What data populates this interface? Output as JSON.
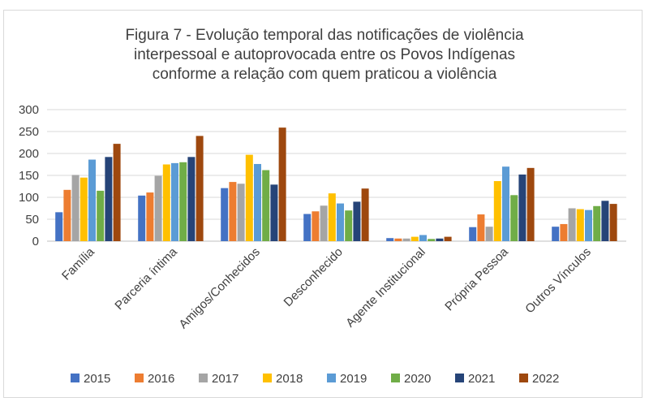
{
  "chart_data": {
    "type": "bar",
    "title": "Figura 7 - Evolução temporal das notificações de violência interpessoal e autoprovocada entre os Povos Indígenas conforme a relação com quem praticou a violência",
    "title_lines": [
      "Figura 7 - Evolução temporal das notificações de violência",
      "interpessoal e autoprovocada entre os Povos Indígenas",
      "conforme a relação com quem praticou a violência"
    ],
    "xlabel": "",
    "ylabel": "",
    "ylim": [
      0,
      300
    ],
    "yticks": [
      "0",
      "50",
      "100",
      "150",
      "200",
      "250",
      "300"
    ],
    "grid": true,
    "legend_position": "bottom",
    "categories": [
      "Família",
      "Parceria íntima",
      "Amigos/Conhecidos",
      "Desconhecido",
      "Agente Institucional",
      "Própria Pessoa",
      "Outros Vínculos"
    ],
    "series": [
      {
        "name": "2015",
        "color": "#4472C4",
        "values": [
          66,
          104,
          121,
          62,
          7,
          32,
          33
        ]
      },
      {
        "name": "2016",
        "color": "#ED7D31",
        "values": [
          117,
          111,
          135,
          68,
          6,
          61,
          39
        ]
      },
      {
        "name": "2017",
        "color": "#A5A5A5",
        "values": [
          151,
          149,
          131,
          81,
          6,
          33,
          75
        ]
      },
      {
        "name": "2018",
        "color": "#FFC000",
        "values": [
          145,
          175,
          197,
          109,
          10,
          137,
          73
        ]
      },
      {
        "name": "2019",
        "color": "#5B9BD5",
        "values": [
          186,
          178,
          176,
          86,
          14,
          170,
          71
        ]
      },
      {
        "name": "2020",
        "color": "#70AD47",
        "values": [
          115,
          180,
          162,
          70,
          5,
          105,
          80
        ]
      },
      {
        "name": "2021",
        "color": "#264478",
        "values": [
          192,
          192,
          129,
          90,
          6,
          152,
          92
        ]
      },
      {
        "name": "2022",
        "color": "#9E480E",
        "values": [
          222,
          240,
          259,
          120,
          10,
          167,
          85
        ]
      }
    ]
  }
}
